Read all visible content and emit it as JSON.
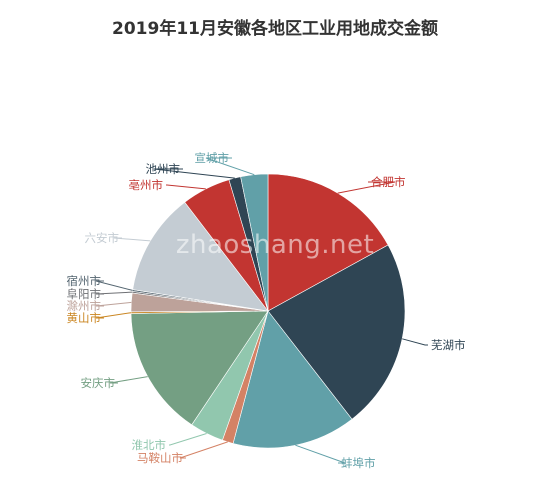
{
  "chart_data": {
    "type": "pie",
    "title": "2019年11月安徽各地区工业用地成交金额",
    "watermark": "zhaoshang.net",
    "slices": [
      {
        "name": "合肥市",
        "value": 17.0,
        "color": "#c23531"
      },
      {
        "name": "芜湖市",
        "value": 22.5,
        "color": "#2f4554"
      },
      {
        "name": "蚌埠市",
        "value": 14.6,
        "color": "#61a0a8"
      },
      {
        "name": "马鞍山市",
        "value": 1.3,
        "color": "#d48265"
      },
      {
        "name": "淮北市",
        "value": 4.0,
        "color": "#91c7ae"
      },
      {
        "name": "安庆市",
        "value": 15.3,
        "color": "#749f83"
      },
      {
        "name": "黄山市",
        "value": 0.2,
        "color": "#ca8622"
      },
      {
        "name": "滁州市",
        "value": 2.2,
        "color": "#bda29a"
      },
      {
        "name": "阜阳市",
        "value": 0.2,
        "color": "#6e7074"
      },
      {
        "name": "宿州市",
        "value": 0.2,
        "color": "#546570"
      },
      {
        "name": "六安市",
        "value": 12.1,
        "color": "#c4ccd3"
      },
      {
        "name": "亳州市",
        "value": 5.8,
        "color": "#c23531"
      },
      {
        "name": "池州市",
        "value": 1.4,
        "color": "#2f4554"
      },
      {
        "name": "宣城市",
        "value": 3.2,
        "color": "#61a0a8"
      }
    ]
  }
}
